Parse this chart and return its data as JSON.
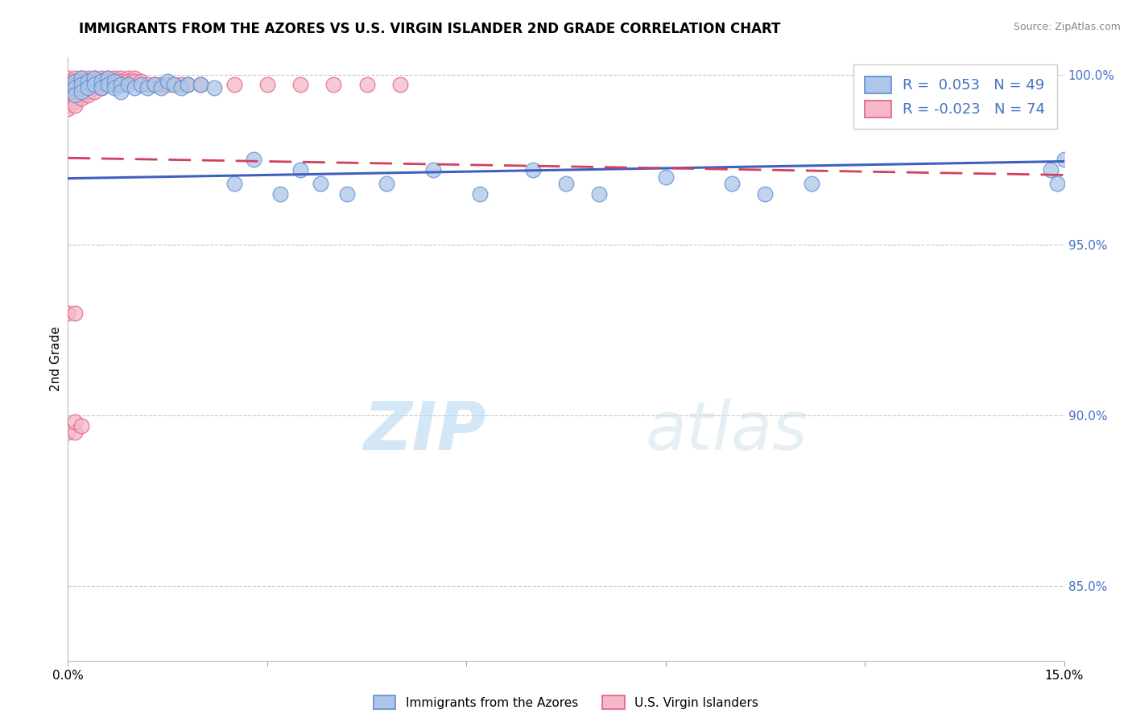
{
  "title": "IMMIGRANTS FROM THE AZORES VS U.S. VIRGIN ISLANDER 2ND GRADE CORRELATION CHART",
  "source_text": "Source: ZipAtlas.com",
  "ylabel": "2nd Grade",
  "watermark_zip": "ZIP",
  "watermark_atlas": "atlas",
  "xlim": [
    0.0,
    0.15
  ],
  "ylim": [
    0.828,
    1.005
  ],
  "xticks": [
    0.0,
    0.03,
    0.06,
    0.09,
    0.12,
    0.15
  ],
  "xticklabels": [
    "0.0%",
    "",
    "",
    "",
    "",
    "15.0%"
  ],
  "yticks": [
    0.85,
    0.9,
    0.95,
    1.0
  ],
  "yticklabels": [
    "85.0%",
    "90.0%",
    "95.0%",
    "100.0%"
  ],
  "legend_r_blue": "0.053",
  "legend_n_blue": "49",
  "legend_r_pink": "-0.023",
  "legend_n_pink": "74",
  "blue_fill": "#aec6e8",
  "blue_edge": "#5b8fd4",
  "pink_fill": "#f5b8c8",
  "pink_edge": "#e06080",
  "blue_line_color": "#4060c0",
  "pink_line_color": "#d04060",
  "grid_color": "#c8c8c8",
  "blue_scatter_x": [
    0.001,
    0.001,
    0.001,
    0.002,
    0.002,
    0.002,
    0.003,
    0.003,
    0.004,
    0.004,
    0.005,
    0.005,
    0.006,
    0.006,
    0.007,
    0.007,
    0.008,
    0.008,
    0.009,
    0.01,
    0.011,
    0.012,
    0.013,
    0.014,
    0.015,
    0.016,
    0.017,
    0.018,
    0.02,
    0.022,
    0.025,
    0.028,
    0.032,
    0.035,
    0.038,
    0.042,
    0.048,
    0.055,
    0.062,
    0.07,
    0.075,
    0.08,
    0.09,
    0.1,
    0.105,
    0.112,
    0.148,
    0.149,
    0.15
  ],
  "blue_scatter_y": [
    0.998,
    0.996,
    0.994,
    0.999,
    0.997,
    0.995,
    0.998,
    0.996,
    0.999,
    0.997,
    0.998,
    0.996,
    0.999,
    0.997,
    0.998,
    0.996,
    0.997,
    0.995,
    0.997,
    0.996,
    0.997,
    0.996,
    0.997,
    0.996,
    0.998,
    0.997,
    0.996,
    0.997,
    0.997,
    0.996,
    0.968,
    0.975,
    0.965,
    0.972,
    0.968,
    0.965,
    0.968,
    0.972,
    0.965,
    0.972,
    0.968,
    0.965,
    0.97,
    0.968,
    0.965,
    0.968,
    0.972,
    0.968,
    0.975
  ],
  "pink_scatter_x": [
    0.0,
    0.0,
    0.0,
    0.0,
    0.0,
    0.0,
    0.0,
    0.0,
    0.0,
    0.0,
    0.001,
    0.001,
    0.001,
    0.001,
    0.001,
    0.001,
    0.001,
    0.001,
    0.001,
    0.002,
    0.002,
    0.002,
    0.002,
    0.002,
    0.002,
    0.002,
    0.003,
    0.003,
    0.003,
    0.003,
    0.003,
    0.003,
    0.004,
    0.004,
    0.004,
    0.004,
    0.004,
    0.005,
    0.005,
    0.005,
    0.005,
    0.006,
    0.006,
    0.006,
    0.007,
    0.007,
    0.007,
    0.008,
    0.008,
    0.009,
    0.009,
    0.01,
    0.01,
    0.011,
    0.012,
    0.013,
    0.014,
    0.015,
    0.016,
    0.017,
    0.018,
    0.02,
    0.0,
    0.001,
    0.0,
    0.001,
    0.025,
    0.03,
    0.035,
    0.04,
    0.045,
    0.05,
    0.001,
    0.002
  ],
  "pink_scatter_y": [
    0.999,
    0.998,
    0.997,
    0.996,
    0.995,
    0.994,
    0.993,
    0.992,
    0.991,
    0.99,
    0.999,
    0.998,
    0.997,
    0.996,
    0.995,
    0.994,
    0.993,
    0.992,
    0.991,
    0.999,
    0.998,
    0.997,
    0.996,
    0.995,
    0.994,
    0.993,
    0.999,
    0.998,
    0.997,
    0.996,
    0.995,
    0.994,
    0.999,
    0.998,
    0.997,
    0.996,
    0.995,
    0.999,
    0.998,
    0.997,
    0.996,
    0.999,
    0.998,
    0.997,
    0.999,
    0.998,
    0.997,
    0.999,
    0.998,
    0.999,
    0.998,
    0.999,
    0.998,
    0.998,
    0.997,
    0.997,
    0.997,
    0.997,
    0.997,
    0.997,
    0.997,
    0.997,
    0.93,
    0.93,
    0.895,
    0.895,
    0.997,
    0.997,
    0.997,
    0.997,
    0.997,
    0.997,
    0.898,
    0.897
  ]
}
